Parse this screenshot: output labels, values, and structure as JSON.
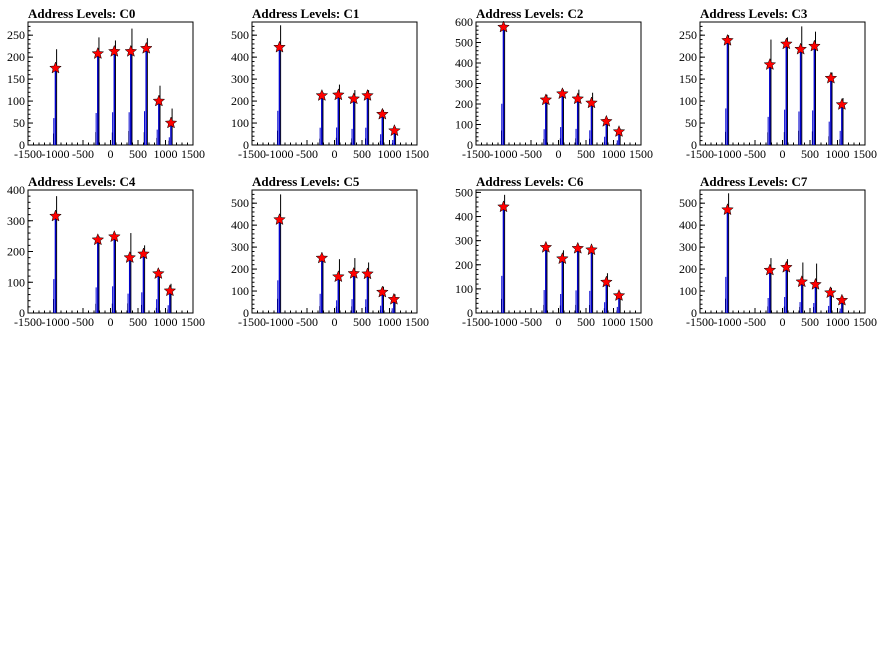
{
  "chart_data": [
    {
      "type": "bar",
      "title": "Address Levels: C0",
      "xlim": [
        -1500,
        1500
      ],
      "ylim": [
        0,
        280
      ],
      "xticks": [
        "-1500",
        "-1000",
        "-500",
        "0",
        "500",
        "1000",
        "1500"
      ],
      "yticks": [
        "0",
        "50",
        "100",
        "150",
        "200",
        "250"
      ],
      "peaks": [
        {
          "x": -1000,
          "y": 175,
          "top": 218
        },
        {
          "x": -230,
          "y": 208,
          "top": 245
        },
        {
          "x": 70,
          "y": 213,
          "top": 238
        },
        {
          "x": 370,
          "y": 213,
          "top": 265
        },
        {
          "x": 650,
          "y": 220,
          "top": 243
        },
        {
          "x": 880,
          "y": 100,
          "top": 135
        },
        {
          "x": 1100,
          "y": 50,
          "top": 83
        }
      ]
    },
    {
      "type": "bar",
      "title": "Address Levels: C1",
      "xlim": [
        -1500,
        1500
      ],
      "ylim": [
        0,
        560
      ],
      "xticks": [
        "-1500",
        "-1000",
        "-500",
        "0",
        "500",
        "1000",
        "1500"
      ],
      "yticks": [
        "0",
        "100",
        "200",
        "300",
        "400",
        "500"
      ],
      "peaks": [
        {
          "x": -1000,
          "y": 445,
          "top": 545
        },
        {
          "x": -230,
          "y": 225,
          "top": 240
        },
        {
          "x": 70,
          "y": 228,
          "top": 275
        },
        {
          "x": 350,
          "y": 210,
          "top": 250
        },
        {
          "x": 600,
          "y": 225,
          "top": 250
        },
        {
          "x": 870,
          "y": 140,
          "top": 160
        },
        {
          "x": 1090,
          "y": 65,
          "top": 80
        }
      ]
    },
    {
      "type": "bar",
      "title": "Address Levels: C2",
      "xlim": [
        -1500,
        1500
      ],
      "ylim": [
        0,
        600
      ],
      "xticks": [
        "-1500",
        "-1000",
        "-500",
        "0",
        "500",
        "1000",
        "1500"
      ],
      "yticks": [
        "0",
        "100",
        "200",
        "300",
        "400",
        "500",
        "600"
      ],
      "peaks": [
        {
          "x": -1000,
          "y": 575,
          "top": 590
        },
        {
          "x": -230,
          "y": 220,
          "top": 245
        },
        {
          "x": 70,
          "y": 250,
          "top": 270
        },
        {
          "x": 350,
          "y": 225,
          "top": 270
        },
        {
          "x": 600,
          "y": 205,
          "top": 255
        },
        {
          "x": 870,
          "y": 115,
          "top": 130
        },
        {
          "x": 1100,
          "y": 65,
          "top": 80
        }
      ]
    },
    {
      "type": "bar",
      "title": "Address Levels: C3",
      "xlim": [
        -1500,
        1500
      ],
      "ylim": [
        0,
        280
      ],
      "xticks": [
        "-1500",
        "-1000",
        "-500",
        "0",
        "500",
        "1000",
        "1500"
      ],
      "yticks": [
        "0",
        "50",
        "100",
        "150",
        "200",
        "250"
      ],
      "peaks": [
        {
          "x": -1000,
          "y": 238,
          "top": 250
        },
        {
          "x": -230,
          "y": 183,
          "top": 240
        },
        {
          "x": 70,
          "y": 230,
          "top": 245
        },
        {
          "x": 330,
          "y": 218,
          "top": 270
        },
        {
          "x": 580,
          "y": 225,
          "top": 258
        },
        {
          "x": 880,
          "y": 152,
          "top": 165
        },
        {
          "x": 1080,
          "y": 92,
          "top": 107
        }
      ]
    },
    {
      "type": "bar",
      "title": "Address Levels: C4",
      "xlim": [
        -1500,
        1500
      ],
      "ylim": [
        0,
        400
      ],
      "xticks": [
        "-1500",
        "-1000",
        "-500",
        "0",
        "500",
        "1000",
        "1500"
      ],
      "yticks": [
        "0",
        "100",
        "200",
        "300",
        "400"
      ],
      "peaks": [
        {
          "x": -1000,
          "y": 315,
          "top": 380
        },
        {
          "x": -230,
          "y": 238,
          "top": 250
        },
        {
          "x": 70,
          "y": 248,
          "top": 255
        },
        {
          "x": 350,
          "y": 180,
          "top": 260
        },
        {
          "x": 600,
          "y": 192,
          "top": 220
        },
        {
          "x": 870,
          "y": 128,
          "top": 140
        },
        {
          "x": 1080,
          "y": 72,
          "top": 95
        }
      ]
    },
    {
      "type": "bar",
      "title": "Address Levels: C5",
      "xlim": [
        -1500,
        1500
      ],
      "ylim": [
        0,
        560
      ],
      "xticks": [
        "-1500",
        "-1000",
        "-500",
        "0",
        "500",
        "1000",
        "1500"
      ],
      "yticks": [
        "0",
        "100",
        "200",
        "300",
        "400",
        "500"
      ],
      "peaks": [
        {
          "x": -1000,
          "y": 425,
          "top": 540
        },
        {
          "x": -230,
          "y": 250,
          "top": 260
        },
        {
          "x": 70,
          "y": 165,
          "top": 245
        },
        {
          "x": 350,
          "y": 180,
          "top": 250
        },
        {
          "x": 600,
          "y": 178,
          "top": 230
        },
        {
          "x": 870,
          "y": 95,
          "top": 120
        },
        {
          "x": 1080,
          "y": 62,
          "top": 85
        }
      ]
    },
    {
      "type": "bar",
      "title": "Address Levels: C6",
      "xlim": [
        -1500,
        1500
      ],
      "ylim": [
        0,
        510
      ],
      "xticks": [
        "-1500",
        "-1000",
        "-500",
        "0",
        "500",
        "1000",
        "1500"
      ],
      "yticks": [
        "0",
        "100",
        "200",
        "300",
        "400",
        "500"
      ],
      "peaks": [
        {
          "x": -1000,
          "y": 440,
          "top": 490
        },
        {
          "x": -230,
          "y": 272,
          "top": 280
        },
        {
          "x": 70,
          "y": 225,
          "top": 260
        },
        {
          "x": 350,
          "y": 268,
          "top": 280
        },
        {
          "x": 600,
          "y": 262,
          "top": 275
        },
        {
          "x": 870,
          "y": 128,
          "top": 165
        },
        {
          "x": 1100,
          "y": 72,
          "top": 85
        }
      ]
    },
    {
      "type": "bar",
      "title": "Address Levels: C7",
      "xlim": [
        -1500,
        1500
      ],
      "ylim": [
        0,
        560
      ],
      "xticks": [
        "-1500",
        "-1000",
        "-500",
        "0",
        "500",
        "1000",
        "1500"
      ],
      "yticks": [
        "0",
        "100",
        "200",
        "300",
        "400",
        "500"
      ],
      "peaks": [
        {
          "x": -1000,
          "y": 470,
          "top": 545
        },
        {
          "x": -230,
          "y": 195,
          "top": 250
        },
        {
          "x": 70,
          "y": 208,
          "top": 245
        },
        {
          "x": 350,
          "y": 142,
          "top": 230
        },
        {
          "x": 600,
          "y": 130,
          "top": 225
        },
        {
          "x": 870,
          "y": 92,
          "top": 115
        },
        {
          "x": 1080,
          "y": 58,
          "top": 75
        }
      ]
    }
  ],
  "colors": {
    "axis": "#000000",
    "hist_black": "#000000",
    "hist_blue": "#0000cc",
    "marker": "#ff0000",
    "marker_edge": "#000000"
  }
}
